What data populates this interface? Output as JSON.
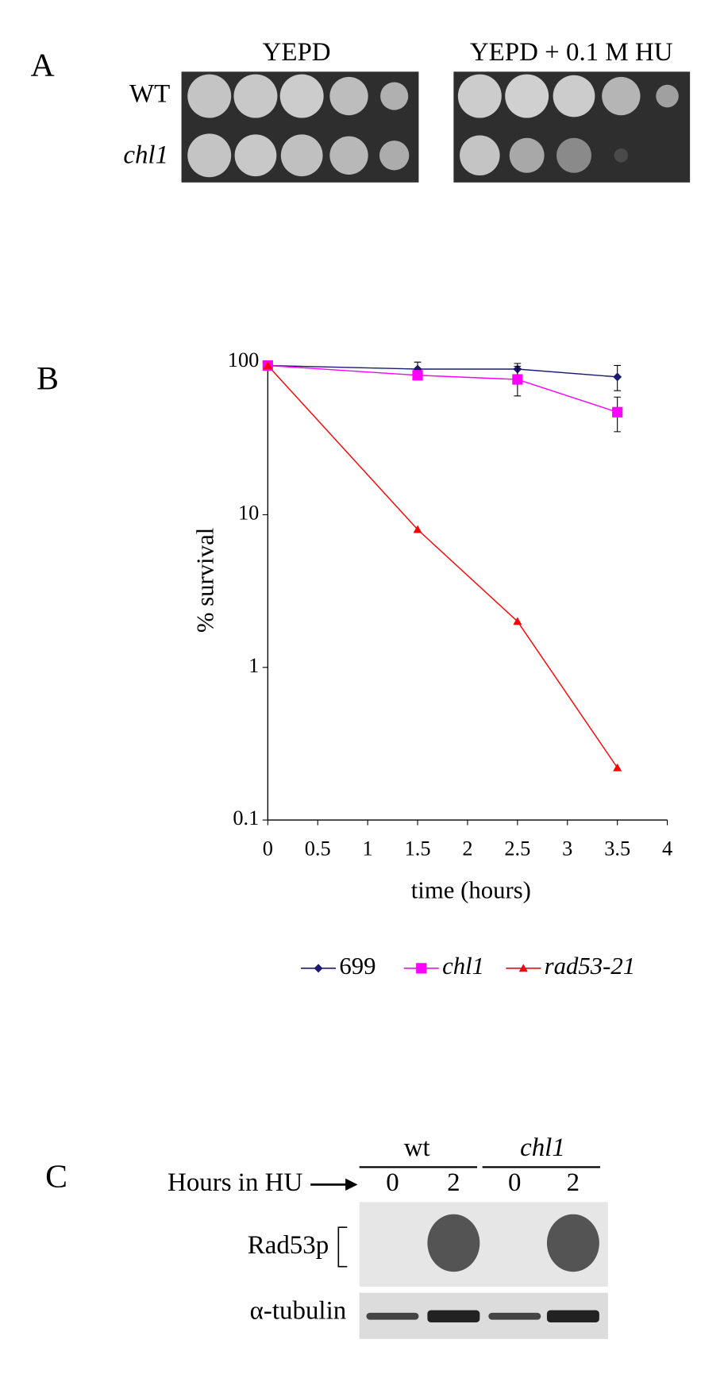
{
  "panel_a": {
    "label": "A",
    "plate_titles": [
      "YEPD",
      "YEPD + 0.1 M HU"
    ],
    "row_labels": [
      "WT",
      "chl1"
    ]
  },
  "chart_data": {
    "type": "line",
    "panel_label": "B",
    "xlabel": "time (hours)",
    "ylabel": "% survival",
    "xlim": [
      0,
      4
    ],
    "xticks": [
      0,
      0.5,
      1,
      1.5,
      2,
      2.5,
      3,
      3.5,
      4
    ],
    "ylim": [
      0.1,
      100
    ],
    "yticks": [
      0.1,
      1,
      10,
      100
    ],
    "log_y": true,
    "grid": false,
    "legend": "bottom",
    "x": [
      0,
      1.5,
      2.5,
      3.5
    ],
    "series": [
      {
        "name": "699",
        "color": "#1a1a6e",
        "marker": "diamond",
        "values": [
          95,
          90,
          90,
          80
        ],
        "errors": [
          null,
          10,
          8,
          15
        ]
      },
      {
        "name": "chl1",
        "color": "#ff00ff",
        "marker": "square",
        "values": [
          95,
          82,
          77,
          47
        ],
        "errors": [
          null,
          5,
          17,
          12
        ]
      },
      {
        "name": "rad53-21",
        "color": "#ff0000",
        "marker": "triangle",
        "values": [
          95,
          8,
          2,
          0.22
        ],
        "errors": [
          null,
          null,
          null,
          null
        ]
      }
    ]
  },
  "panel_c": {
    "label": "C",
    "groups": [
      "wt",
      "chl1"
    ],
    "hours_label": "Hours in HU",
    "lanes": [
      "0",
      "2",
      "0",
      "2"
    ],
    "rows": [
      "Rad53p",
      "α-tubulin"
    ]
  }
}
